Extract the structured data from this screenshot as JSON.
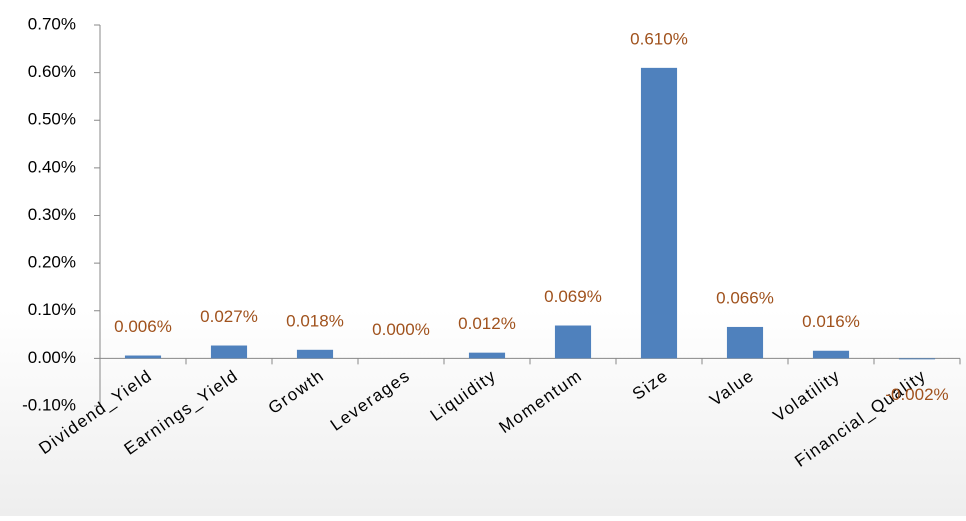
{
  "chart_data": {
    "type": "bar",
    "categories": [
      "Dividend_Yield",
      "Earnings_Yield",
      "Growth",
      "Leverages",
      "Liquidity",
      "Momentum",
      "Size",
      "Value",
      "Volatility",
      "Financial_Quality"
    ],
    "values": [
      0.006,
      0.027,
      0.018,
      0.0,
      0.012,
      0.069,
      0.61,
      0.066,
      0.016,
      -0.002
    ],
    "value_labels": [
      "0.006%",
      "0.027%",
      "0.018%",
      "0.000%",
      "0.012%",
      "0.069%",
      "0.610%",
      "0.066%",
      "0.016%",
      "-0.002%"
    ],
    "color": "#4f81bd",
    "value_label_color": "#a0521d",
    "ylim": [
      -0.1,
      0.7
    ],
    "yticks": [
      {
        "value": -0.1,
        "label": "-0.10%"
      },
      {
        "value": 0,
        "label": "0.00%"
      },
      {
        "value": 0.1,
        "label": "0.10%"
      },
      {
        "value": 0.2,
        "label": "0.20%"
      },
      {
        "value": 0.3,
        "label": "0.30%"
      },
      {
        "value": 0.4,
        "label": "0.40%"
      },
      {
        "value": 0.5,
        "label": "0.50%"
      },
      {
        "value": 0.6,
        "label": "0.60%"
      },
      {
        "value": 0.7,
        "label": "0.70%"
      }
    ],
    "grid": false
  }
}
